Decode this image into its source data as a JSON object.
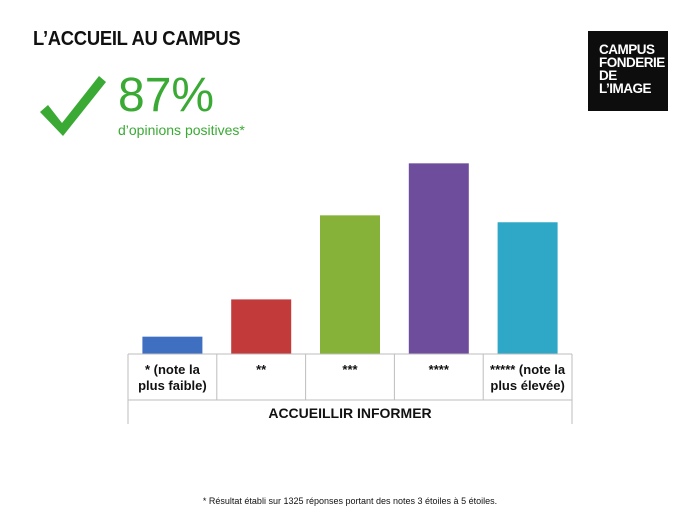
{
  "header": {
    "title": "L’ACCUEIL AU CAMPUS",
    "logo_lines": [
      "CAMPUS",
      "FONDERIE",
      "DE",
      "L’IMAGE"
    ]
  },
  "kpi": {
    "value": "87%",
    "caption": "d’opinions positives*",
    "color": "#3aaa35",
    "icon": "check-icon"
  },
  "chart_data": {
    "type": "bar",
    "categories": [
      "* (note la plus faible)",
      "**",
      "***",
      "****",
      "***** (note la plus élevée)"
    ],
    "category_lines": [
      [
        "* (note la",
        "plus faible)"
      ],
      [
        "**"
      ],
      [
        "***"
      ],
      [
        "****"
      ],
      [
        "***** (note la",
        "plus élevée)"
      ]
    ],
    "values": [
      2,
      6.3,
      16,
      22,
      15.2
    ],
    "colors": [
      "#3f6fc0",
      "#c23a3a",
      "#86b23a",
      "#6e4d9c",
      "#2fa7c6"
    ],
    "xlabel": "ACCUEILLIR INFORMER",
    "ylim": [
      0,
      24
    ],
    "grid": false,
    "legend": "none"
  },
  "footnote": "* Résultat établi sur 1325 réponses portant des notes 3 étoiles à 5 étoiles."
}
